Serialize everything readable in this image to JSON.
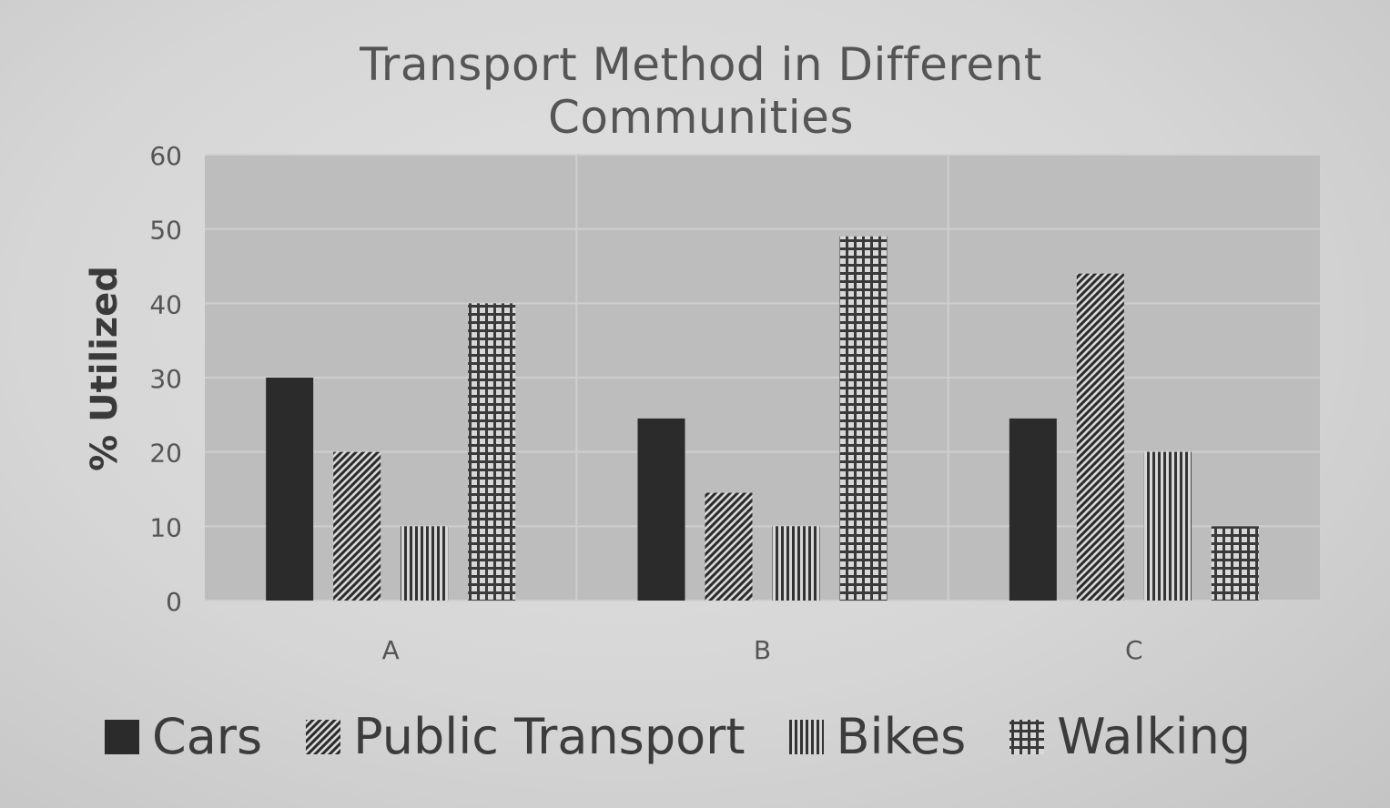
{
  "chart_data": {
    "type": "bar",
    "title": "Transport Method in Different Communities",
    "xlabel": "",
    "ylabel": "% Utilized",
    "categories": [
      "A",
      "B",
      "C"
    ],
    "series": [
      {
        "name": "Cars",
        "values": [
          30,
          24.5,
          24.5
        ],
        "pattern": "solid"
      },
      {
        "name": "Public Transport",
        "values": [
          20,
          14.5,
          44
        ],
        "pattern": "diagonal"
      },
      {
        "name": "Bikes",
        "values": [
          10,
          10,
          20
        ],
        "pattern": "vertical"
      },
      {
        "name": "Walking",
        "values": [
          40,
          49,
          10
        ],
        "pattern": "dots"
      }
    ],
    "ylim": [
      0,
      60
    ],
    "yticks": [
      0,
      10,
      20,
      30,
      40,
      50,
      60
    ],
    "grid": true,
    "legend_position": "bottom"
  },
  "colors": {
    "plot_bg": "#bdbdbd",
    "bar_dark": "#2b2b2b",
    "grid": "#cfcfcf",
    "text": "#3c3c3c"
  }
}
